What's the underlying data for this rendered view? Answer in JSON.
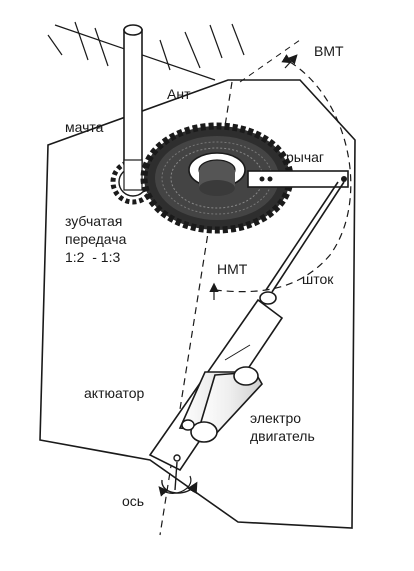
{
  "labels": {
    "vmt": "ВМТ",
    "ant": "Ант",
    "mast": "мачта",
    "lever": "рычаг",
    "gear_line1": "зубчатая",
    "gear_line2": "передача",
    "gear_line3": "1:2  - 1:3",
    "nmt": "НМТ",
    "rod": "шток",
    "actuator": "актюатор",
    "motor_line1": "электро",
    "motor_line2": "двигатель",
    "axis": "ось"
  },
  "colors": {
    "ink": "#1a1a1a",
    "gear_fill": "#3a3a3a",
    "paper": "#ffffff"
  }
}
